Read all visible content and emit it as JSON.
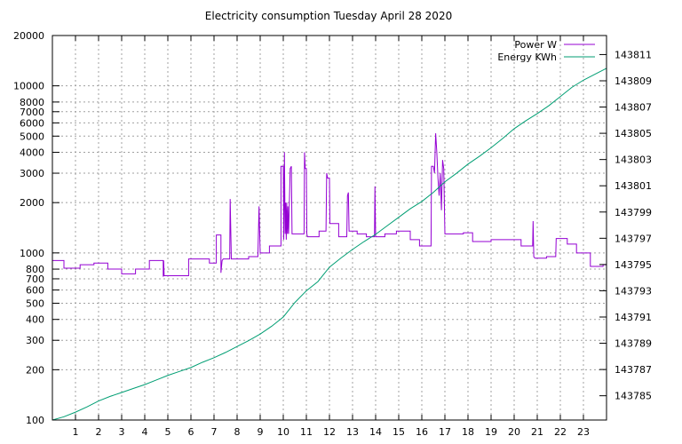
{
  "chart_data": {
    "type": "line",
    "title": "Electricity consumption Tuesday April 28 2020",
    "grid": true,
    "legend_position": "top-right",
    "x_range": [
      0,
      24
    ],
    "x_ticks": [
      "1",
      "2",
      "3",
      "4",
      "5",
      "6",
      "7",
      "8",
      "9",
      "10",
      "11",
      "12",
      "13",
      "14",
      "15",
      "16",
      "17",
      "18",
      "19",
      "20",
      "21",
      "22",
      "23"
    ],
    "y_left": {
      "scale": "log",
      "range": [
        100,
        20000
      ],
      "ticks": [
        "100",
        "200",
        "300",
        "400",
        "500",
        "600",
        "700",
        "800",
        "1000",
        "2000",
        "3000",
        "4000",
        "5000",
        "6000",
        "7000",
        "8000",
        "10000",
        "20000"
      ]
    },
    "y_right": {
      "scale": "linear",
      "range": [
        143783.15,
        143812.45
      ],
      "ticks": [
        "143785",
        "143787",
        "143789",
        "143791",
        "143793",
        "143795",
        "143797",
        "143799",
        "143801",
        "143803",
        "143805",
        "143807",
        "143809",
        "143811"
      ]
    },
    "series": [
      {
        "name": "Power W",
        "color": "#9400d3",
        "axis": "left",
        "points": [
          [
            0.0,
            900
          ],
          [
            0.5,
            900
          ],
          [
            0.5,
            810
          ],
          [
            1.2,
            810
          ],
          [
            1.2,
            850
          ],
          [
            1.8,
            850
          ],
          [
            1.8,
            870
          ],
          [
            2.4,
            870
          ],
          [
            2.4,
            800
          ],
          [
            3.0,
            800
          ],
          [
            3.0,
            750
          ],
          [
            3.6,
            750
          ],
          [
            3.6,
            800
          ],
          [
            4.2,
            800
          ],
          [
            4.2,
            900
          ],
          [
            4.8,
            900
          ],
          [
            4.8,
            720
          ],
          [
            4.82,
            900
          ],
          [
            4.84,
            730
          ],
          [
            5.9,
            730
          ],
          [
            5.9,
            920
          ],
          [
            6.8,
            920
          ],
          [
            6.8,
            870
          ],
          [
            7.1,
            870
          ],
          [
            7.1,
            1280
          ],
          [
            7.3,
            1280
          ],
          [
            7.3,
            760
          ],
          [
            7.35,
            900
          ],
          [
            7.4,
            920
          ],
          [
            7.68,
            920
          ],
          [
            7.7,
            2100
          ],
          [
            7.75,
            920
          ],
          [
            8.5,
            920
          ],
          [
            8.5,
            950
          ],
          [
            8.9,
            950
          ],
          [
            8.95,
            1900
          ],
          [
            9.0,
            1000
          ],
          [
            9.4,
            1000
          ],
          [
            9.4,
            1100
          ],
          [
            9.9,
            1100
          ],
          [
            9.9,
            3300
          ],
          [
            10.0,
            3300
          ],
          [
            10.02,
            1200
          ],
          [
            10.05,
            4000
          ],
          [
            10.08,
            1300
          ],
          [
            10.1,
            2000
          ],
          [
            10.13,
            1200
          ],
          [
            10.15,
            2000
          ],
          [
            10.18,
            1300
          ],
          [
            10.2,
            1900
          ],
          [
            10.23,
            1300
          ],
          [
            10.3,
            3200
          ],
          [
            10.35,
            3300
          ],
          [
            10.38,
            1300
          ],
          [
            10.9,
            1300
          ],
          [
            10.92,
            4000
          ],
          [
            10.95,
            3200
          ],
          [
            11.0,
            3200
          ],
          [
            11.02,
            1300
          ],
          [
            11.05,
            1250
          ],
          [
            11.55,
            1250
          ],
          [
            11.55,
            1350
          ],
          [
            11.85,
            1350
          ],
          [
            11.88,
            3000
          ],
          [
            11.92,
            2800
          ],
          [
            12.0,
            2800
          ],
          [
            12.02,
            1500
          ],
          [
            12.4,
            1500
          ],
          [
            12.4,
            1250
          ],
          [
            12.75,
            1250
          ],
          [
            12.78,
            2200
          ],
          [
            12.82,
            2300
          ],
          [
            12.85,
            1350
          ],
          [
            13.2,
            1350
          ],
          [
            13.2,
            1300
          ],
          [
            13.6,
            1300
          ],
          [
            13.6,
            1250
          ],
          [
            13.95,
            1250
          ],
          [
            13.97,
            2500
          ],
          [
            14.0,
            1250
          ],
          [
            14.4,
            1250
          ],
          [
            14.4,
            1300
          ],
          [
            14.9,
            1300
          ],
          [
            14.9,
            1350
          ],
          [
            15.5,
            1350
          ],
          [
            15.5,
            1200
          ],
          [
            15.9,
            1200
          ],
          [
            15.9,
            1100
          ],
          [
            16.4,
            1100
          ],
          [
            16.42,
            3300
          ],
          [
            16.5,
            3300
          ],
          [
            16.55,
            3000
          ],
          [
            16.6,
            5200
          ],
          [
            16.65,
            4000
          ],
          [
            16.7,
            2800
          ],
          [
            16.75,
            2200
          ],
          [
            16.8,
            3000
          ],
          [
            16.85,
            1800
          ],
          [
            16.9,
            3600
          ],
          [
            16.95,
            3200
          ],
          [
            17.0,
            1300
          ],
          [
            17.8,
            1300
          ],
          [
            17.8,
            1320
          ],
          [
            18.2,
            1320
          ],
          [
            18.2,
            1170
          ],
          [
            19.0,
            1170
          ],
          [
            19.0,
            1200
          ],
          [
            20.3,
            1200
          ],
          [
            20.3,
            1100
          ],
          [
            20.8,
            1100
          ],
          [
            20.82,
            1550
          ],
          [
            20.85,
            950
          ],
          [
            20.9,
            930
          ],
          [
            21.4,
            930
          ],
          [
            21.4,
            950
          ],
          [
            21.8,
            950
          ],
          [
            21.82,
            1220
          ],
          [
            22.3,
            1220
          ],
          [
            22.3,
            1130
          ],
          [
            22.7,
            1130
          ],
          [
            22.7,
            1000
          ],
          [
            23.3,
            1000
          ],
          [
            23.3,
            830
          ],
          [
            23.85,
            830
          ],
          [
            23.85,
            850
          ],
          [
            24.0,
            850
          ]
        ]
      },
      {
        "name": "Energy KWh",
        "color": "#009e73",
        "axis": "right",
        "points": [
          [
            0.0,
            143783.15
          ],
          [
            0.5,
            143783.4
          ],
          [
            1.0,
            143783.75
          ],
          [
            1.5,
            143784.15
          ],
          [
            2.0,
            143784.6
          ],
          [
            2.5,
            143784.95
          ],
          [
            3.0,
            143785.25
          ],
          [
            3.5,
            143785.55
          ],
          [
            4.0,
            143785.85
          ],
          [
            4.5,
            143786.2
          ],
          [
            5.0,
            143786.55
          ],
          [
            5.5,
            143786.85
          ],
          [
            6.0,
            143787.15
          ],
          [
            6.5,
            143787.55
          ],
          [
            7.0,
            143787.9
          ],
          [
            7.5,
            143788.3
          ],
          [
            8.0,
            143788.75
          ],
          [
            8.5,
            143789.2
          ],
          [
            9.0,
            143789.7
          ],
          [
            9.5,
            143790.3
          ],
          [
            10.0,
            143791.0
          ],
          [
            10.5,
            143792.1
          ],
          [
            11.0,
            143793.0
          ],
          [
            11.5,
            143793.7
          ],
          [
            12.0,
            143794.8
          ],
          [
            12.5,
            143795.5
          ],
          [
            13.0,
            143796.15
          ],
          [
            13.5,
            143796.75
          ],
          [
            14.0,
            143797.3
          ],
          [
            14.5,
            143797.95
          ],
          [
            15.0,
            143798.6
          ],
          [
            15.5,
            143799.25
          ],
          [
            16.0,
            143799.8
          ],
          [
            16.5,
            143800.5
          ],
          [
            17.0,
            143801.3
          ],
          [
            17.5,
            143801.95
          ],
          [
            18.0,
            143802.65
          ],
          [
            18.5,
            143803.25
          ],
          [
            19.0,
            143803.9
          ],
          [
            19.5,
            143804.6
          ],
          [
            20.0,
            143805.35
          ],
          [
            20.5,
            143805.95
          ],
          [
            21.0,
            143806.5
          ],
          [
            21.5,
            143807.1
          ],
          [
            22.0,
            143807.8
          ],
          [
            22.5,
            143808.5
          ],
          [
            23.0,
            143809.05
          ],
          [
            23.5,
            143809.5
          ],
          [
            24.0,
            143809.95
          ]
        ]
      }
    ]
  }
}
